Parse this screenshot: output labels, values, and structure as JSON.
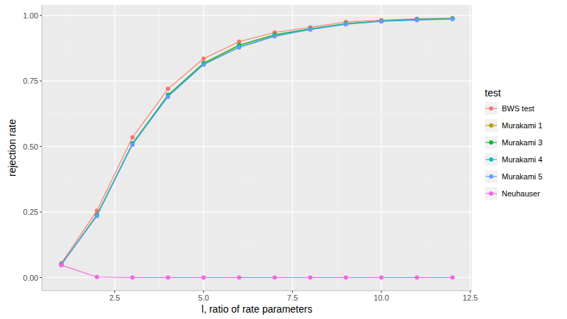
{
  "chart_data": {
    "type": "line",
    "x_label": "l, ratio of rate parameters",
    "y_label": "rejection rate",
    "legend_title": "test",
    "x": [
      1,
      2,
      3,
      4,
      5,
      6,
      7,
      8,
      9,
      10,
      11,
      12
    ],
    "series": [
      {
        "name": "BWS test",
        "color": "#F8766D",
        "values": [
          0.055,
          0.255,
          0.535,
          0.72,
          0.835,
          0.9,
          0.935,
          0.955,
          0.975,
          0.982,
          0.987,
          0.99
        ]
      },
      {
        "name": "Murakami 1",
        "color": "#B79F00",
        "values": [
          0.05,
          0.24,
          0.51,
          0.695,
          0.815,
          0.885,
          0.925,
          0.948,
          0.968,
          0.979,
          0.984,
          0.988
        ]
      },
      {
        "name": "Murakami 3",
        "color": "#00BA38",
        "values": [
          0.05,
          0.238,
          0.512,
          0.697,
          0.818,
          0.887,
          0.927,
          0.949,
          0.969,
          0.979,
          0.985,
          0.988
        ]
      },
      {
        "name": "Murakami 4",
        "color": "#00BFC4",
        "values": [
          0.05,
          0.236,
          0.508,
          0.692,
          0.813,
          0.88,
          0.922,
          0.947,
          0.967,
          0.978,
          0.983,
          0.987
        ]
      },
      {
        "name": "Murakami 5",
        "color": "#619CFF",
        "values": [
          0.048,
          0.235,
          0.507,
          0.69,
          0.812,
          0.878,
          0.92,
          0.946,
          0.966,
          0.977,
          0.982,
          0.986
        ]
      },
      {
        "name": "Neuhauser",
        "color": "#F564E3",
        "values": [
          0.047,
          0.002,
          0,
          0,
          0,
          0,
          0,
          0,
          0,
          0,
          0,
          0
        ]
      }
    ],
    "xlim": [
      0.45,
      12.55
    ],
    "xticks": [
      2.5,
      {
        "value": 5,
        "label": "5.0"
      },
      7.5,
      {
        "value": 10,
        "label": "10.0"
      },
      12.5
    ],
    "ylim": [
      -0.05,
      1.04
    ],
    "yticks": [
      {
        "value": 0,
        "label": "0.00"
      },
      {
        "value": 0.25,
        "label": "0.25"
      },
      {
        "value": 0.5,
        "label": "0.50"
      },
      {
        "value": 0.75,
        "label": "0.75"
      },
      {
        "value": 1,
        "label": "1.00"
      }
    ],
    "grid": true,
    "legend": "right",
    "marker": "circle",
    "line_style": "solid"
  }
}
